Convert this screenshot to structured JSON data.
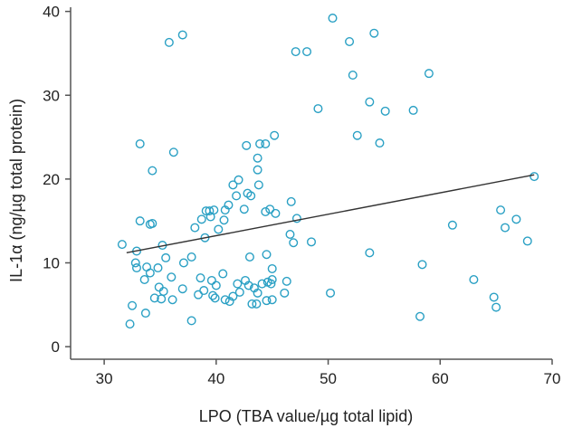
{
  "chart_data": {
    "type": "scatter",
    "title": "",
    "xlabel": "LPO (TBA value/µg total lipid)",
    "ylabel": "IL-1α (ng/µg total protein)",
    "xlim": [
      27,
      70
    ],
    "ylim": [
      -1.5,
      40.5
    ],
    "xticks": [
      30,
      40,
      50,
      60,
      70
    ],
    "yticks": [
      0,
      10,
      20,
      30,
      40
    ],
    "grid": false,
    "marker_color": "#2aa0c4",
    "line_color": "#333333",
    "axis_color": "#555555",
    "trendline": {
      "x": [
        32.0,
        68.4
      ],
      "y": [
        11.2,
        20.5
      ]
    },
    "points": [
      {
        "x": 31.6,
        "y": 12.2
      },
      {
        "x": 32.3,
        "y": 2.7
      },
      {
        "x": 32.5,
        "y": 4.9
      },
      {
        "x": 32.8,
        "y": 10.0
      },
      {
        "x": 32.9,
        "y": 11.4
      },
      {
        "x": 32.9,
        "y": 9.4
      },
      {
        "x": 33.2,
        "y": 15.0
      },
      {
        "x": 33.2,
        "y": 24.2
      },
      {
        "x": 33.6,
        "y": 8.0
      },
      {
        "x": 33.7,
        "y": 4.0
      },
      {
        "x": 33.8,
        "y": 9.5
      },
      {
        "x": 34.1,
        "y": 14.6
      },
      {
        "x": 34.1,
        "y": 8.8
      },
      {
        "x": 34.3,
        "y": 14.7
      },
      {
        "x": 34.3,
        "y": 21.0
      },
      {
        "x": 34.5,
        "y": 5.8
      },
      {
        "x": 34.8,
        "y": 9.4
      },
      {
        "x": 34.9,
        "y": 7.1
      },
      {
        "x": 35.1,
        "y": 5.7
      },
      {
        "x": 35.2,
        "y": 12.1
      },
      {
        "x": 35.3,
        "y": 6.6
      },
      {
        "x": 35.5,
        "y": 10.6
      },
      {
        "x": 35.8,
        "y": 36.3
      },
      {
        "x": 36.0,
        "y": 8.3
      },
      {
        "x": 36.1,
        "y": 5.6
      },
      {
        "x": 36.2,
        "y": 23.2
      },
      {
        "x": 37.0,
        "y": 37.2
      },
      {
        "x": 37.0,
        "y": 6.9
      },
      {
        "x": 37.1,
        "y": 10.0
      },
      {
        "x": 37.8,
        "y": 3.1
      },
      {
        "x": 37.8,
        "y": 10.7
      },
      {
        "x": 38.1,
        "y": 14.2
      },
      {
        "x": 38.4,
        "y": 6.2
      },
      {
        "x": 38.6,
        "y": 8.2
      },
      {
        "x": 38.7,
        "y": 15.2
      },
      {
        "x": 38.9,
        "y": 6.7
      },
      {
        "x": 39.0,
        "y": 13.0
      },
      {
        "x": 39.1,
        "y": 16.2
      },
      {
        "x": 39.4,
        "y": 16.2
      },
      {
        "x": 39.5,
        "y": 15.5
      },
      {
        "x": 39.6,
        "y": 7.9
      },
      {
        "x": 39.7,
        "y": 6.1
      },
      {
        "x": 39.8,
        "y": 16.3
      },
      {
        "x": 39.9,
        "y": 5.8
      },
      {
        "x": 40.0,
        "y": 7.3
      },
      {
        "x": 40.2,
        "y": 14.0
      },
      {
        "x": 40.6,
        "y": 8.7
      },
      {
        "x": 40.7,
        "y": 15.1
      },
      {
        "x": 40.8,
        "y": 5.6
      },
      {
        "x": 40.8,
        "y": 16.3
      },
      {
        "x": 41.1,
        "y": 16.9
      },
      {
        "x": 41.2,
        "y": 5.4
      },
      {
        "x": 41.5,
        "y": 19.3
      },
      {
        "x": 41.5,
        "y": 6.0
      },
      {
        "x": 41.8,
        "y": 18.0
      },
      {
        "x": 41.9,
        "y": 7.5
      },
      {
        "x": 42.0,
        "y": 19.9
      },
      {
        "x": 42.1,
        "y": 6.5
      },
      {
        "x": 42.5,
        "y": 16.4
      },
      {
        "x": 42.6,
        "y": 7.9
      },
      {
        "x": 42.7,
        "y": 24.0
      },
      {
        "x": 42.8,
        "y": 18.3
      },
      {
        "x": 42.9,
        "y": 7.3
      },
      {
        "x": 43.0,
        "y": 10.7
      },
      {
        "x": 43.1,
        "y": 18.0
      },
      {
        "x": 43.2,
        "y": 5.1
      },
      {
        "x": 43.4,
        "y": 7.0
      },
      {
        "x": 43.6,
        "y": 5.1
      },
      {
        "x": 43.7,
        "y": 21.1
      },
      {
        "x": 43.7,
        "y": 6.4
      },
      {
        "x": 43.7,
        "y": 22.5
      },
      {
        "x": 43.8,
        "y": 19.3
      },
      {
        "x": 43.9,
        "y": 24.2
      },
      {
        "x": 44.1,
        "y": 7.5
      },
      {
        "x": 44.4,
        "y": 24.2
      },
      {
        "x": 44.4,
        "y": 16.1
      },
      {
        "x": 44.5,
        "y": 11.0
      },
      {
        "x": 44.5,
        "y": 5.5
      },
      {
        "x": 44.6,
        "y": 7.7
      },
      {
        "x": 44.8,
        "y": 16.4
      },
      {
        "x": 44.9,
        "y": 7.5
      },
      {
        "x": 45.0,
        "y": 5.6
      },
      {
        "x": 45.0,
        "y": 8.0
      },
      {
        "x": 45.0,
        "y": 9.3
      },
      {
        "x": 45.2,
        "y": 25.2
      },
      {
        "x": 45.3,
        "y": 15.9
      },
      {
        "x": 46.1,
        "y": 6.4
      },
      {
        "x": 46.3,
        "y": 7.8
      },
      {
        "x": 46.6,
        "y": 13.4
      },
      {
        "x": 46.7,
        "y": 17.3
      },
      {
        "x": 46.9,
        "y": 12.4
      },
      {
        "x": 47.1,
        "y": 35.2
      },
      {
        "x": 47.2,
        "y": 15.3
      },
      {
        "x": 48.1,
        "y": 35.2
      },
      {
        "x": 48.5,
        "y": 12.5
      },
      {
        "x": 49.1,
        "y": 28.4
      },
      {
        "x": 50.2,
        "y": 6.4
      },
      {
        "x": 50.4,
        "y": 39.2
      },
      {
        "x": 51.9,
        "y": 36.4
      },
      {
        "x": 52.2,
        "y": 32.4
      },
      {
        "x": 52.6,
        "y": 25.2
      },
      {
        "x": 53.7,
        "y": 29.2
      },
      {
        "x": 53.7,
        "y": 11.2
      },
      {
        "x": 54.1,
        "y": 37.4
      },
      {
        "x": 54.6,
        "y": 24.3
      },
      {
        "x": 55.1,
        "y": 28.1
      },
      {
        "x": 57.6,
        "y": 28.2
      },
      {
        "x": 58.2,
        "y": 3.6
      },
      {
        "x": 58.4,
        "y": 9.8
      },
      {
        "x": 59.0,
        "y": 32.6
      },
      {
        "x": 61.1,
        "y": 14.5
      },
      {
        "x": 63.0,
        "y": 8.0
      },
      {
        "x": 64.8,
        "y": 5.9
      },
      {
        "x": 65.0,
        "y": 4.7
      },
      {
        "x": 65.4,
        "y": 16.3
      },
      {
        "x": 65.8,
        "y": 14.2
      },
      {
        "x": 66.8,
        "y": 15.2
      },
      {
        "x": 67.8,
        "y": 12.6
      },
      {
        "x": 68.4,
        "y": 20.3
      }
    ]
  }
}
